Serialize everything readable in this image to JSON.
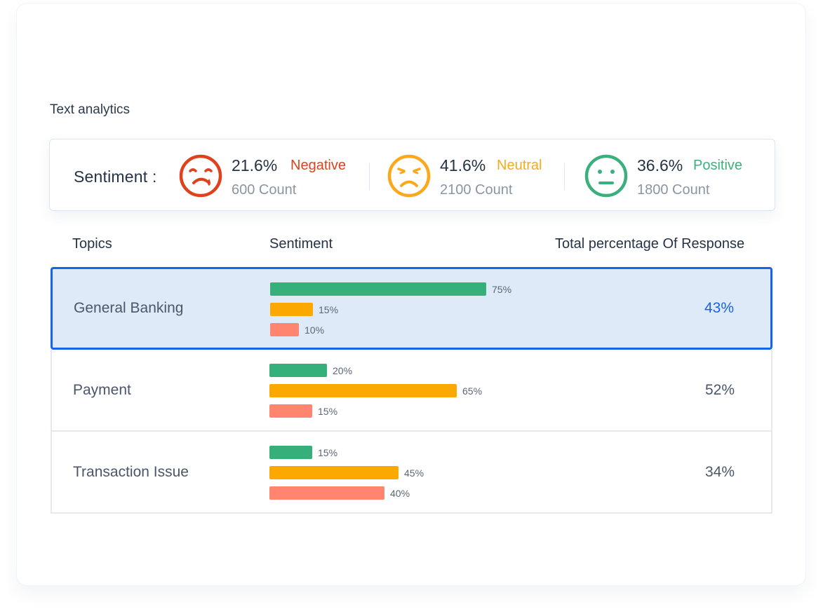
{
  "colors": {
    "negative": "#e0401c",
    "neutral": "#fba81b",
    "positive": "#3bb07c",
    "bar_positive": "#35b07a",
    "bar_neutral": "#fba800",
    "bar_negative": "#ff8570",
    "selected_border": "#1565e6"
  },
  "section_title": "Text analytics",
  "sentiment": {
    "label": "Sentiment :",
    "stats": [
      {
        "icon": "crying-face-icon",
        "percent": "21.6%",
        "label": "Negative",
        "count": "600 Count"
      },
      {
        "icon": "angry-face-icon",
        "percent": "41.6%",
        "label": "Neutral",
        "count": "2100 Count"
      },
      {
        "icon": "neutral-face-icon",
        "percent": "36.6%",
        "label": "Positive",
        "count": "1800 Count"
      }
    ]
  },
  "table": {
    "headers": {
      "topics": "Topics",
      "sentiment": "Sentiment",
      "total": "Total percentage Of Response"
    },
    "rows": [
      {
        "topic": "General Banking",
        "total": "43%",
        "selected": true,
        "bars": [
          {
            "kind": "positive",
            "value": 75,
            "label": "75%"
          },
          {
            "kind": "neutral",
            "value": 15,
            "label": "15%"
          },
          {
            "kind": "negative",
            "value": 10,
            "label": "10%"
          }
        ]
      },
      {
        "topic": "Payment",
        "total": "52%",
        "selected": false,
        "bars": [
          {
            "kind": "positive",
            "value": 20,
            "label": "20%"
          },
          {
            "kind": "neutral",
            "value": 65,
            "label": "65%"
          },
          {
            "kind": "negative",
            "value": 15,
            "label": "15%"
          }
        ]
      },
      {
        "topic": "Transaction Issue",
        "total": "34%",
        "selected": false,
        "bars": [
          {
            "kind": "positive",
            "value": 15,
            "label": "15%"
          },
          {
            "kind": "neutral",
            "value": 45,
            "label": "45%"
          },
          {
            "kind": "negative",
            "value": 40,
            "label": "40%"
          }
        ]
      }
    ]
  }
}
